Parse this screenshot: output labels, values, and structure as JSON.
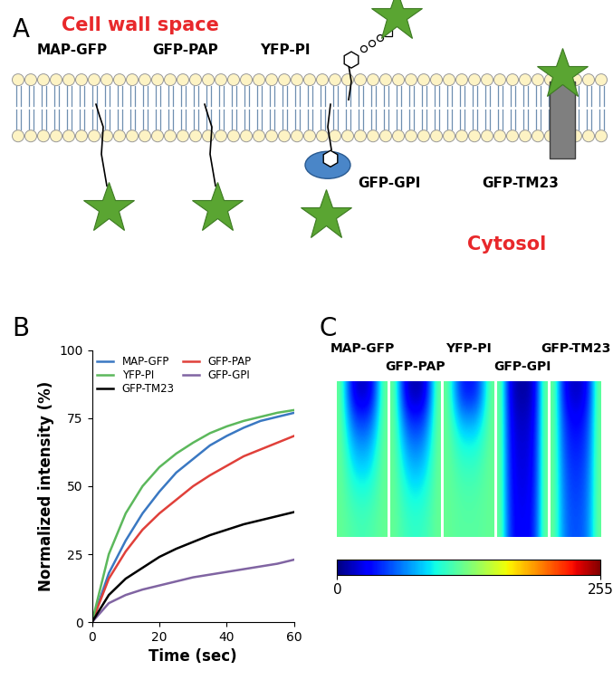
{
  "panel_labels": [
    "A",
    "B",
    "C"
  ],
  "diagram": {
    "regions": {
      "top": "Cell wall space",
      "bottom": "Cytosol"
    },
    "constructs": [
      "MAP-GFP",
      "GFP-PAP",
      "YFP-PI",
      "GFP-GPI",
      "GFP-TM23"
    ]
  },
  "chart_data": {
    "type": "line",
    "x_label": "Time (sec)",
    "y_label": "Normalized intensity (%)",
    "x": [
      0,
      5,
      10,
      15,
      20,
      25,
      30,
      35,
      40,
      45,
      50,
      55,
      60
    ],
    "series": [
      {
        "name": "MAP-GFP",
        "color": "#3a78c2",
        "values": [
          0,
          18,
          30,
          40,
          48,
          55,
          60,
          65,
          68.5,
          71.5,
          74,
          75.5,
          77
        ]
      },
      {
        "name": "GFP-PAP",
        "color": "#e0403a",
        "values": [
          0,
          16,
          26,
          34,
          40,
          45,
          50,
          54,
          57.5,
          61,
          63.5,
          66,
          68.5
        ]
      },
      {
        "name": "YFP-PI",
        "color": "#5cb85c",
        "values": [
          0,
          25,
          40,
          50,
          57,
          62,
          66,
          69.5,
          72,
          74,
          75.5,
          77,
          78
        ]
      },
      {
        "name": "GFP-GPI",
        "color": "#8064a2",
        "values": [
          0,
          7,
          10,
          12,
          13.5,
          15,
          16.5,
          17.5,
          18.5,
          19.5,
          20.5,
          21.5,
          23
        ]
      },
      {
        "name": "GFP-TM23",
        "color": "#000000",
        "values": [
          0,
          10,
          16,
          20,
          24,
          27,
          29.5,
          32,
          34,
          36,
          37.5,
          39,
          40.5
        ]
      }
    ],
    "xlim": [
      0,
      60
    ],
    "xticks": [
      0,
      20,
      40,
      60
    ],
    "ylim": [
      0,
      100
    ],
    "yticks": [
      0,
      25,
      50,
      75,
      100
    ],
    "grid": false,
    "legend": "upper left"
  },
  "kymographs": {
    "labels": [
      "MAP-GFP",
      "GFP-PAP",
      "YFP-PI",
      "GFP-GPI",
      "GFP-TM23"
    ],
    "cells": [
      [
        [
          120,
          60,
          20,
          15,
          20,
          60,
          120
        ],
        [
          120,
          80,
          50,
          45,
          50,
          80,
          120
        ],
        [
          120,
          95,
          75,
          70,
          75,
          95,
          120
        ],
        [
          120,
          105,
          90,
          88,
          90,
          105,
          120
        ],
        [
          120,
          112,
          105,
          102,
          105,
          112,
          120
        ],
        [
          120,
          116,
          112,
          110,
          112,
          116,
          120
        ]
      ],
      [
        [
          120,
          55,
          15,
          10,
          15,
          55,
          120
        ],
        [
          120,
          75,
          45,
          40,
          45,
          75,
          120
        ],
        [
          120,
          90,
          68,
          62,
          68,
          90,
          120
        ],
        [
          120,
          100,
          85,
          80,
          85,
          100,
          120
        ],
        [
          120,
          108,
          98,
          95,
          98,
          108,
          120
        ],
        [
          120,
          112,
          106,
          104,
          106,
          112,
          120
        ]
      ],
      [
        [
          120,
          75,
          40,
          35,
          40,
          75,
          120
        ],
        [
          120,
          95,
          75,
          72,
          75,
          95,
          120
        ],
        [
          120,
          108,
          98,
          96,
          98,
          108,
          120
        ],
        [
          120,
          114,
          108,
          107,
          108,
          114,
          120
        ],
        [
          120,
          117,
          114,
          113,
          114,
          117,
          120
        ],
        [
          120,
          118,
          116,
          116,
          116,
          118,
          120
        ]
      ],
      [
        [
          120,
          40,
          10,
          8,
          10,
          40,
          120
        ],
        [
          120,
          45,
          18,
          15,
          18,
          45,
          120
        ],
        [
          120,
          48,
          22,
          20,
          22,
          48,
          120
        ],
        [
          120,
          50,
          25,
          22,
          25,
          50,
          120
        ],
        [
          120,
          52,
          28,
          25,
          28,
          52,
          120
        ],
        [
          120,
          55,
          30,
          28,
          30,
          55,
          120
        ]
      ],
      [
        [
          120,
          50,
          20,
          15,
          20,
          50,
          120
        ],
        [
          120,
          60,
          35,
          30,
          35,
          60,
          120
        ],
        [
          120,
          65,
          42,
          38,
          42,
          65,
          120
        ],
        [
          120,
          70,
          48,
          44,
          48,
          70,
          120
        ],
        [
          120,
          73,
          52,
          48,
          52,
          73,
          120
        ],
        [
          120,
          75,
          55,
          52,
          55,
          75,
          120
        ]
      ]
    ],
    "colorbar": {
      "range": [
        0,
        255
      ],
      "ticks": [
        0,
        255
      ]
    }
  }
}
